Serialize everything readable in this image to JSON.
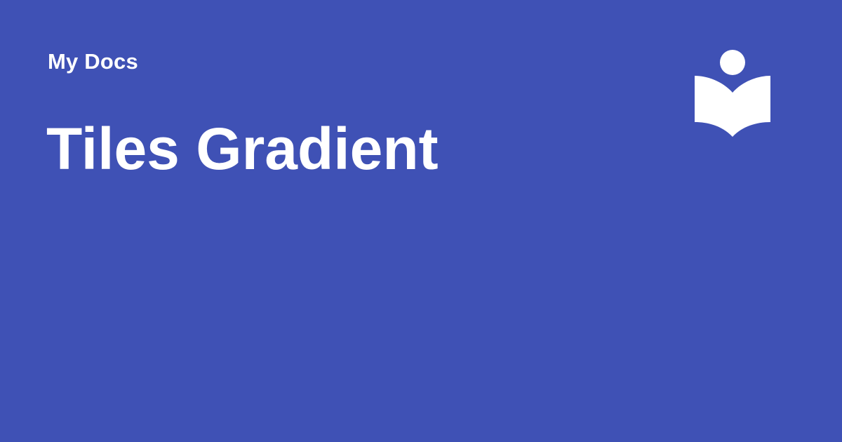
{
  "site": {
    "name": "My Docs"
  },
  "page": {
    "title": "Tiles Gradient"
  },
  "logo": {
    "icon": "reader-book-icon",
    "color": "#FFFFFF"
  },
  "theme": {
    "background": "#3F51B5",
    "text": "#FFFFFF"
  }
}
